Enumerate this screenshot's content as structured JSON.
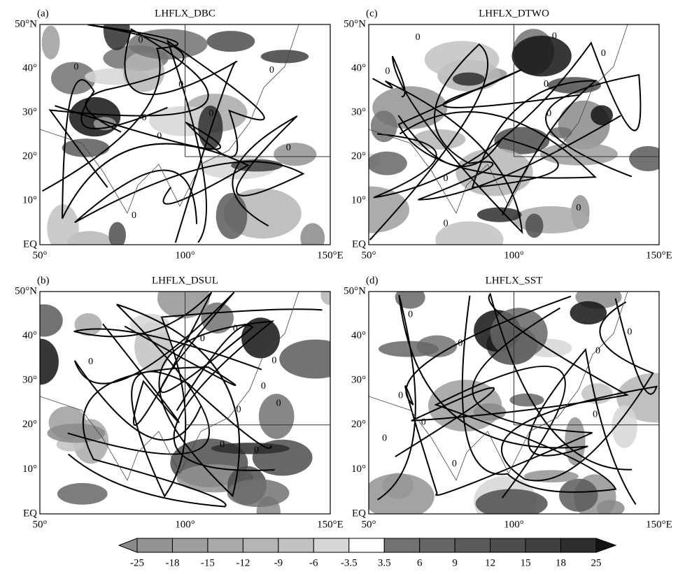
{
  "panels": [
    {
      "label": "(a)",
      "title": "LHFLX_DBC"
    },
    {
      "label": "(c)",
      "title": "LHFLX_DTWO"
    },
    {
      "label": "(b)",
      "title": "LHFLX_DSUL"
    },
    {
      "label": "(d)",
      "title": "LHFLX_SST"
    }
  ],
  "lon_range": [
    50,
    150
  ],
  "lat_range": [
    0,
    50
  ],
  "lon_ticks": [
    {
      "value": 50,
      "label": "50°"
    },
    {
      "value": 100,
      "label": "100°"
    },
    {
      "value": 150,
      "label": "150°E"
    }
  ],
  "lat_ticks": [
    {
      "value": 0,
      "label": "EQ"
    },
    {
      "value": 10,
      "label": "10°"
    },
    {
      "value": 20,
      "label": "20°"
    },
    {
      "value": 30,
      "label": "30°"
    },
    {
      "value": 40,
      "label": "40°"
    },
    {
      "value": 50,
      "label": "50°N"
    }
  ],
  "contour_label": "0",
  "colorbar": {
    "levels": [
      -25,
      -18,
      -15,
      -12,
      -9,
      -6,
      -3.5,
      3.5,
      6,
      9,
      12,
      15,
      18,
      25
    ],
    "colors": [
      "#8a8a8a",
      "#939393",
      "#9e9e9e",
      "#a9a9a9",
      "#b5b5b5",
      "#c2c2c2",
      "#d6d6d6",
      "#ffffff",
      "#727272",
      "#666666",
      "#5a5a5a",
      "#4d4d4d",
      "#404040",
      "#2e2e2e",
      "#141414"
    ]
  }
}
